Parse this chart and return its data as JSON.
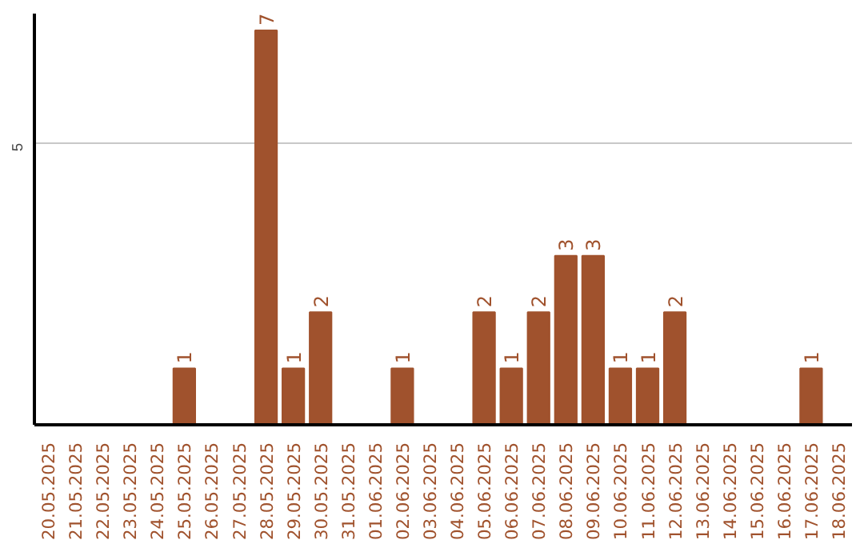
{
  "chart_data": {
    "type": "bar",
    "categories": [
      "20.05.2025",
      "21.05.2025",
      "22.05.2025",
      "23.05.2025",
      "24.05.2025",
      "25.05.2025",
      "26.05.2025",
      "27.05.2025",
      "28.05.2025",
      "29.05.2025",
      "30.05.2025",
      "31.05.2025",
      "01.06.2025",
      "02.06.2025",
      "03.06.2025",
      "04.06.2025",
      "05.06.2025",
      "06.06.2025",
      "07.06.2025",
      "08.06.2025",
      "09.06.2025",
      "10.06.2025",
      "11.06.2025",
      "12.06.2025",
      "13.06.2025",
      "14.06.2025",
      "15.06.2025",
      "16.06.2025",
      "17.06.2025",
      "18.06.2025"
    ],
    "values": [
      0,
      0,
      0,
      0,
      0,
      1,
      0,
      0,
      7,
      1,
      2,
      0,
      0,
      1,
      0,
      0,
      2,
      1,
      2,
      3,
      3,
      1,
      1,
      2,
      0,
      0,
      0,
      0,
      1,
      0
    ],
    "value_labels": [
      null,
      null,
      null,
      null,
      null,
      "1",
      null,
      null,
      "7",
      "1",
      "2",
      null,
      null,
      "1",
      null,
      null,
      "2",
      "1",
      "2",
      "3",
      "3",
      "1",
      "1",
      "2",
      null,
      null,
      null,
      null,
      "1",
      null
    ],
    "color": "#a0522d",
    "ylim": [
      0,
      7.3
    ],
    "yticks": [
      5
    ],
    "grid": "y"
  }
}
